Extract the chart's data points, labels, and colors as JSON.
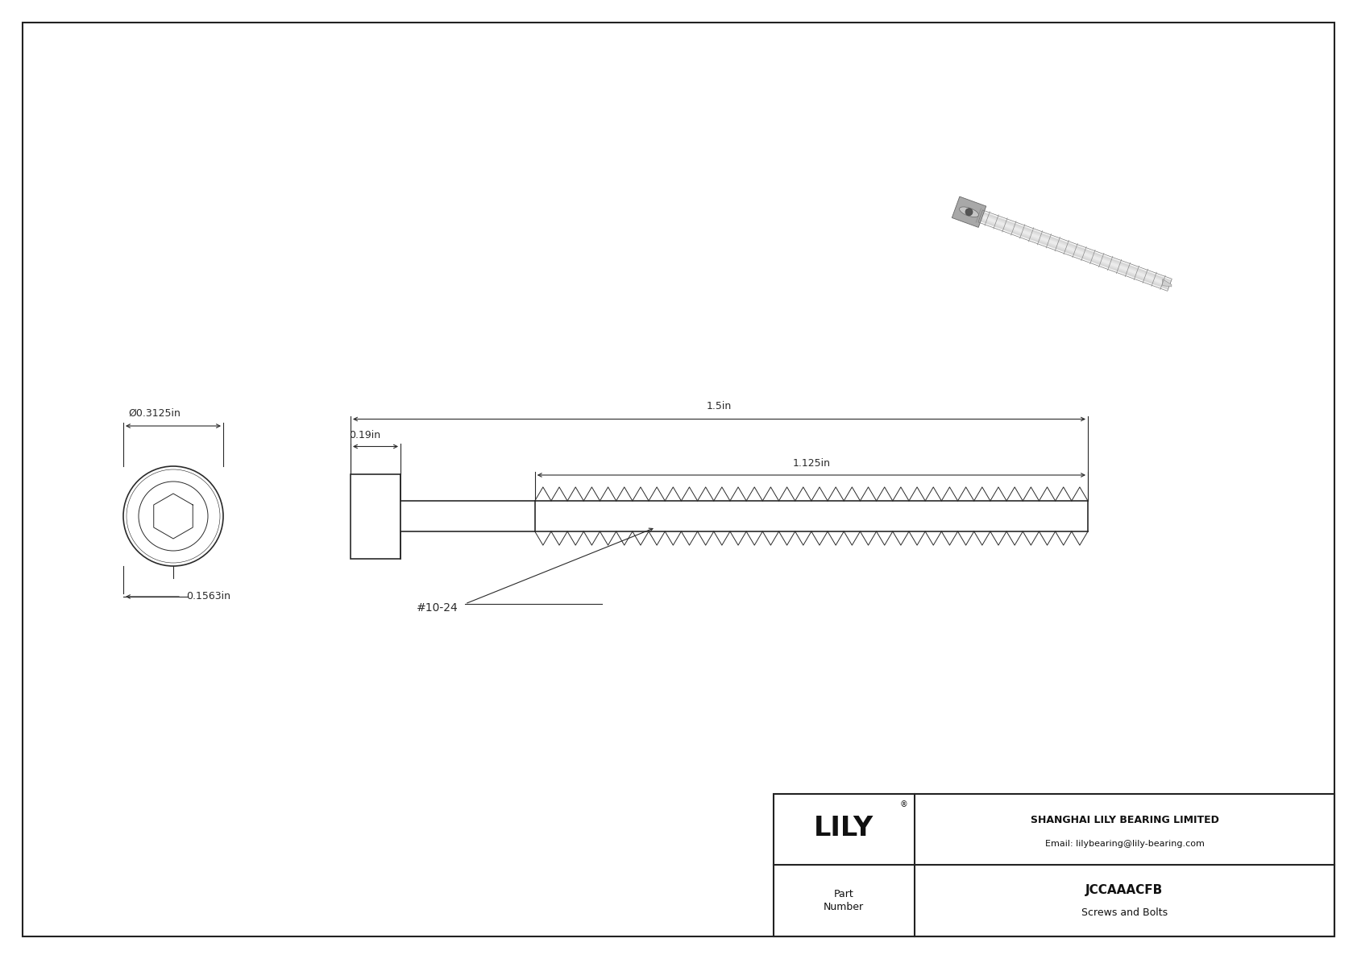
{
  "bg_color": "#ffffff",
  "draw_color": "#2a2a2a",
  "dim_color": "#2a2a2a",
  "title": "JCCAAACFB",
  "subtitle": "Screws and Bolts",
  "company": "SHANGHAI LILY BEARING LIMITED",
  "email": "Email: lilybearing@lily-bearing.com",
  "logo": "LILY",
  "part_label": "Part\nNumber",
  "dim_diameter": "Ø0.3125in",
  "dim_height": "0.1563in",
  "dim_head_width": "0.19in",
  "dim_total_length": "1.5in",
  "dim_thread_length": "1.125in",
  "thread_label": "#10-24",
  "border_color": "#222222",
  "photo_body_color": "#c8c8c8",
  "photo_head_color": "#b0b0b0",
  "photo_thread_color": "#999999",
  "photo_shadow_color": "#aaaaaa"
}
